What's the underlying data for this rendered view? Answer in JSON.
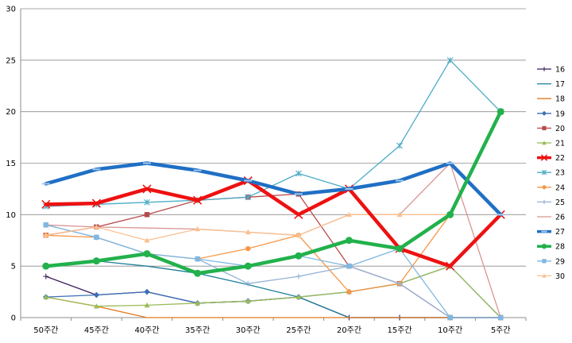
{
  "chart_data": {
    "type": "line",
    "title": "",
    "xlabel": "",
    "ylabel": "",
    "categories": [
      "50주간",
      "45주간",
      "40주간",
      "35주간",
      "30주간",
      "25주간",
      "20주간",
      "15주간",
      "10주간",
      "5주간"
    ],
    "ylim": [
      0,
      30
    ],
    "yticks": [
      0,
      5,
      10,
      15,
      20,
      25,
      30
    ],
    "grid": "horizontal",
    "legend_position": "right",
    "series": [
      {
        "name": "16",
        "color": "#3b1f5c",
        "width": 1.3,
        "marker": "plus",
        "values": [
          4,
          2.2,
          2.5,
          1.4,
          1.6,
          2,
          0,
          0,
          0,
          0
        ]
      },
      {
        "name": "17",
        "color": "#1f7f9a",
        "width": 1.3,
        "marker": "none",
        "values": [
          5,
          5.5,
          5,
          4.3,
          3.2,
          2,
          0,
          0,
          0,
          0
        ]
      },
      {
        "name": "18",
        "color": "#e37a1f",
        "width": 1.3,
        "marker": "none",
        "values": [
          2,
          1.1,
          0,
          0,
          0,
          0,
          0,
          0,
          0,
          0
        ]
      },
      {
        "name": "19",
        "color": "#3c6fb8",
        "width": 1.3,
        "marker": "diamond",
        "values": [
          2,
          2.2,
          2.5,
          1.4,
          1.6,
          2,
          2.5,
          3.3,
          5,
          0
        ]
      },
      {
        "name": "20",
        "color": "#b84a4a",
        "width": 1.3,
        "marker": "square",
        "values": [
          8,
          8.8,
          10,
          11.4,
          11.7,
          12,
          5,
          3.3,
          0,
          0
        ]
      },
      {
        "name": "21",
        "color": "#9bbb59",
        "width": 1.3,
        "marker": "triangle",
        "values": [
          2,
          1.1,
          1.2,
          1.4,
          1.6,
          2,
          2.5,
          3.3,
          5,
          0
        ]
      },
      {
        "name": "22",
        "color": "#ee1111",
        "width": 4.5,
        "marker": "x",
        "values": [
          11,
          11.1,
          12.5,
          11.4,
          13.3,
          10,
          12.5,
          6.7,
          5,
          10
        ]
      },
      {
        "name": "23",
        "color": "#4bacc6",
        "width": 1.3,
        "marker": "star",
        "values": [
          10.8,
          11,
          11.2,
          11.4,
          11.7,
          14,
          12.5,
          16.7,
          25,
          20
        ]
      },
      {
        "name": "24",
        "color": "#f79646",
        "width": 1.3,
        "marker": "circle",
        "values": [
          8,
          7.8,
          6.2,
          5.7,
          6.7,
          8,
          2.5,
          3.3,
          10,
          20
        ]
      },
      {
        "name": "25",
        "color": "#95b3d7",
        "width": 1.3,
        "marker": "plus",
        "values": [
          9,
          7.8,
          6.2,
          5.7,
          3.3,
          4,
          5,
          3.3,
          0,
          0
        ]
      },
      {
        "name": "26",
        "color": "#d99594",
        "width": 1.3,
        "marker": "none",
        "values": [
          9,
          8.8,
          8.7,
          8.6,
          8.3,
          8,
          10,
          10,
          15,
          0
        ]
      },
      {
        "name": "27",
        "color": "#1f6fc5",
        "width": 4.5,
        "marker": "dash",
        "values": [
          13,
          14.4,
          15,
          14.3,
          13.3,
          12,
          12.5,
          13.3,
          15,
          10
        ]
      },
      {
        "name": "28",
        "color": "#22b14c",
        "width": 4.5,
        "marker": "circle",
        "values": [
          5,
          5.5,
          6.2,
          4.3,
          5,
          6,
          7.5,
          6.7,
          10,
          20
        ]
      },
      {
        "name": "29",
        "color": "#7fb7e0",
        "width": 1.3,
        "marker": "square",
        "values": [
          9,
          7.8,
          6.2,
          5.7,
          5,
          6,
          5,
          6.7,
          0,
          0
        ]
      },
      {
        "name": "30",
        "color": "#fac090",
        "width": 1.3,
        "marker": "triangle",
        "values": [
          8,
          8.8,
          7.5,
          8.6,
          8.3,
          8,
          10,
          10,
          10,
          20
        ]
      }
    ]
  }
}
